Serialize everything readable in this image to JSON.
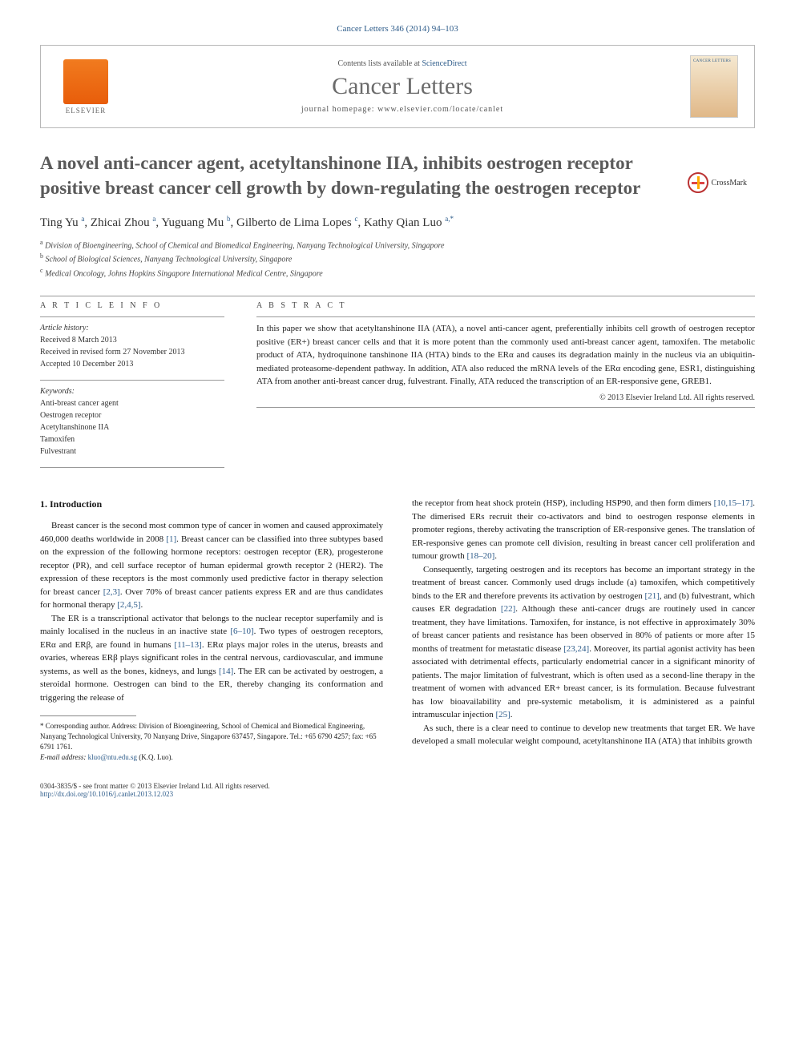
{
  "journal_ref": "Cancer Letters 346 (2014) 94–103",
  "header": {
    "contents_prefix": "Contents lists available at ",
    "contents_link": "ScienceDirect",
    "journal_title": "Cancer Letters",
    "homepage_prefix": "journal homepage: ",
    "homepage_url": "www.elsevier.com/locate/canlet",
    "publisher": "ELSEVIER",
    "cover_label": "CANCER LETTERS"
  },
  "crossmark_label": "CrossMark",
  "article_title": "A novel anti-cancer agent, acetyltanshinone IIA, inhibits oestrogen receptor positive breast cancer cell growth by down-regulating the oestrogen receptor",
  "authors_html": "Ting Yu <sup>a</sup>, Zhicai Zhou <sup>a</sup>, Yuguang Mu <sup>b</sup>, Gilberto de Lima Lopes <sup>c</sup>, Kathy Qian Luo <sup>a,*</sup>",
  "affiliations": [
    "a Division of Bioengineering, School of Chemical and Biomedical Engineering, Nanyang Technological University, Singapore",
    "b School of Biological Sciences, Nanyang Technological University, Singapore",
    "c Medical Oncology, Johns Hopkins Singapore International Medical Centre, Singapore"
  ],
  "info": {
    "heading": "A R T I C L E   I N F O",
    "history_label": "Article history:",
    "received": "Received 8 March 2013",
    "revised": "Received in revised form 27 November 2013",
    "accepted": "Accepted 10 December 2013",
    "keywords_label": "Keywords:",
    "keywords": [
      "Anti-breast cancer agent",
      "Oestrogen receptor",
      "Acetyltanshinone IIA",
      "Tamoxifen",
      "Fulvestrant"
    ]
  },
  "abstract": {
    "heading": "A B S T R A C T",
    "text": "In this paper we show that acetyltanshinone IIA (ATA), a novel anti-cancer agent, preferentially inhibits cell growth of oestrogen receptor positive (ER+) breast cancer cells and that it is more potent than the commonly used anti-breast cancer agent, tamoxifen. The metabolic product of ATA, hydroquinone tanshinone IIA (HTA) binds to the ERα and causes its degradation mainly in the nucleus via an ubiquitin-mediated proteasome-dependent pathway. In addition, ATA also reduced the mRNA levels of the ERα encoding gene, ESR1, distinguishing ATA from another anti-breast cancer drug, fulvestrant. Finally, ATA reduced the transcription of an ER-responsive gene, GREB1.",
    "copyright": "© 2013 Elsevier Ireland Ltd. All rights reserved."
  },
  "section1": {
    "heading": "1. Introduction",
    "p1": "Breast cancer is the second most common type of cancer in women and caused approximately 460,000 deaths worldwide in 2008 [1]. Breast cancer can be classified into three subtypes based on the expression of the following hormone receptors: oestrogen receptor (ER), progesterone receptor (PR), and cell surface receptor of human epidermal growth receptor 2 (HER2). The expression of these receptors is the most commonly used predictive factor in therapy selection for breast cancer [2,3]. Over 70% of breast cancer patients express ER and are thus candidates for hormonal therapy [2,4,5].",
    "p2": "The ER is a transcriptional activator that belongs to the nuclear receptor superfamily and is mainly localised in the nucleus in an inactive state [6–10]. Two types of oestrogen receptors, ERα and ERβ, are found in humans [11–13]. ERα plays major roles in the uterus, breasts and ovaries, whereas ERβ plays significant roles in the central nervous, cardiovascular, and immune systems, as well as the bones, kidneys, and lungs [14]. The ER can be activated by oestrogen, a steroidal hormone. Oestrogen can bind to the ER, thereby changing its conformation and triggering the release of",
    "p3": "the receptor from heat shock protein (HSP), including HSP90, and then form dimers [10,15–17]. The dimerised ERs recruit their co-activators and bind to oestrogen response elements in promoter regions, thereby activating the transcription of ER-responsive genes. The translation of ER-responsive genes can promote cell division, resulting in breast cancer cell proliferation and tumour growth [18–20].",
    "p4": "Consequently, targeting oestrogen and its receptors has become an important strategy in the treatment of breast cancer. Commonly used drugs include (a) tamoxifen, which competitively binds to the ER and therefore prevents its activation by oestrogen [21], and (b) fulvestrant, which causes ER degradation [22]. Although these anti-cancer drugs are routinely used in cancer treatment, they have limitations. Tamoxifen, for instance, is not effective in approximately 30% of breast cancer patients and resistance has been observed in 80% of patients or more after 15 months of treatment for metastatic disease [23,24]. Moreover, its partial agonist activity has been associated with detrimental effects, particularly endometrial cancer in a significant minority of patients. The major limitation of fulvestrant, which is often used as a second-line therapy in the treatment of women with advanced ER+ breast cancer, is its formulation. Because fulvestrant has low bioavailability and pre-systemic metabolism, it is administered as a painful intramuscular injection [25].",
    "p5": "As such, there is a clear need to continue to develop new treatments that target ER. We have developed a small molecular weight compound, acetyltanshinone IIA (ATA) that inhibits growth"
  },
  "footnote": {
    "corresponding": "* Corresponding author. Address: Division of Bioengineering, School of Chemical and Biomedical Engineering, Nanyang Technological University, 70 Nanyang Drive, Singapore 637457, Singapore. Tel.: +65 6790 4257; fax: +65 6791 1761.",
    "email_label": "E-mail address: ",
    "email": "kluo@ntu.edu.sg",
    "email_suffix": " (K.Q. Luo)."
  },
  "bottom": {
    "line1": "0304-3835/$ - see front matter © 2013 Elsevier Ireland Ltd. All rights reserved.",
    "doi": "http://dx.doi.org/10.1016/j.canlet.2013.12.023"
  },
  "ref_links": [
    "[1]",
    "[2,3]",
    "[2,4,5]",
    "[6–10]",
    "[11–13]",
    "[14]",
    "[10,15–17]",
    "[18–20]",
    "[21]",
    "[22]",
    "[23,24]",
    "[25]"
  ],
  "colors": {
    "link": "#2e5c8a",
    "title_gray": "#5a5a5a",
    "text": "#1a1a1a",
    "elsevier_orange": "#e85d0a"
  },
  "typography": {
    "body_fontsize": 11,
    "title_fontsize": 23,
    "journal_title_fontsize": 30,
    "info_fontsize": 10,
    "footnote_fontsize": 9
  }
}
